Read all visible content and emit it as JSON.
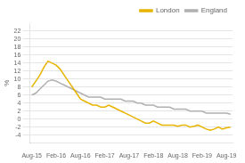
{
  "chart_data": {
    "type": "line",
    "categories": [
      "Aug-15",
      null,
      null,
      null,
      null,
      null,
      "Feb-16",
      null,
      null,
      null,
      null,
      null,
      "Aug-16",
      null,
      null,
      null,
      null,
      null,
      "Feb-17",
      null,
      null,
      null,
      null,
      null,
      "Aug-17",
      null,
      null,
      null,
      null,
      null,
      "Feb-18",
      null,
      null,
      null,
      null,
      null,
      "Aug-18",
      null,
      null,
      null,
      null,
      null,
      "Feb-19",
      null,
      null,
      null,
      null,
      null,
      "Aug-19",
      null
    ],
    "series": [
      {
        "name": "London",
        "color": "#e8b400",
        "values": [
          8.0,
          9.5,
          11.0,
          13.0,
          14.5,
          14.0,
          13.5,
          12.5,
          11.0,
          9.5,
          8.0,
          6.5,
          5.0,
          4.5,
          4.0,
          3.5,
          3.5,
          3.0,
          3.0,
          3.5,
          3.0,
          2.5,
          2.0,
          1.5,
          1.0,
          0.5,
          0.0,
          -0.5,
          -1.0,
          -1.0,
          -0.5,
          -1.0,
          -1.5,
          -1.5,
          -1.5,
          -1.5,
          -1.8,
          -1.5,
          -1.5,
          -2.0,
          -1.8,
          -1.5,
          -2.0,
          -2.5,
          -2.8,
          -2.5,
          -2.0,
          -2.5,
          -2.2,
          -2.0
        ]
      },
      {
        "name": "England",
        "color": "#b0b0b0",
        "values": [
          6.0,
          6.5,
          7.5,
          8.5,
          9.5,
          9.8,
          9.5,
          9.0,
          8.5,
          8.0,
          7.5,
          7.0,
          6.5,
          6.0,
          5.5,
          5.5,
          5.5,
          5.5,
          5.0,
          5.0,
          5.0,
          5.0,
          5.0,
          4.5,
          4.5,
          4.5,
          4.0,
          4.0,
          3.5,
          3.5,
          3.5,
          3.0,
          3.0,
          3.0,
          3.0,
          2.5,
          2.5,
          2.5,
          2.5,
          2.0,
          2.0,
          2.0,
          2.0,
          1.5,
          1.5,
          1.5,
          1.5,
          1.5,
          1.5,
          1.2
        ]
      }
    ],
    "y_label": "%",
    "ylim": [
      -6,
      24
    ],
    "yticks": [
      -4,
      -2,
      0,
      2,
      4,
      6,
      8,
      10,
      12,
      14,
      16,
      18,
      20,
      22
    ],
    "grid": "y",
    "legend": "upper right"
  }
}
